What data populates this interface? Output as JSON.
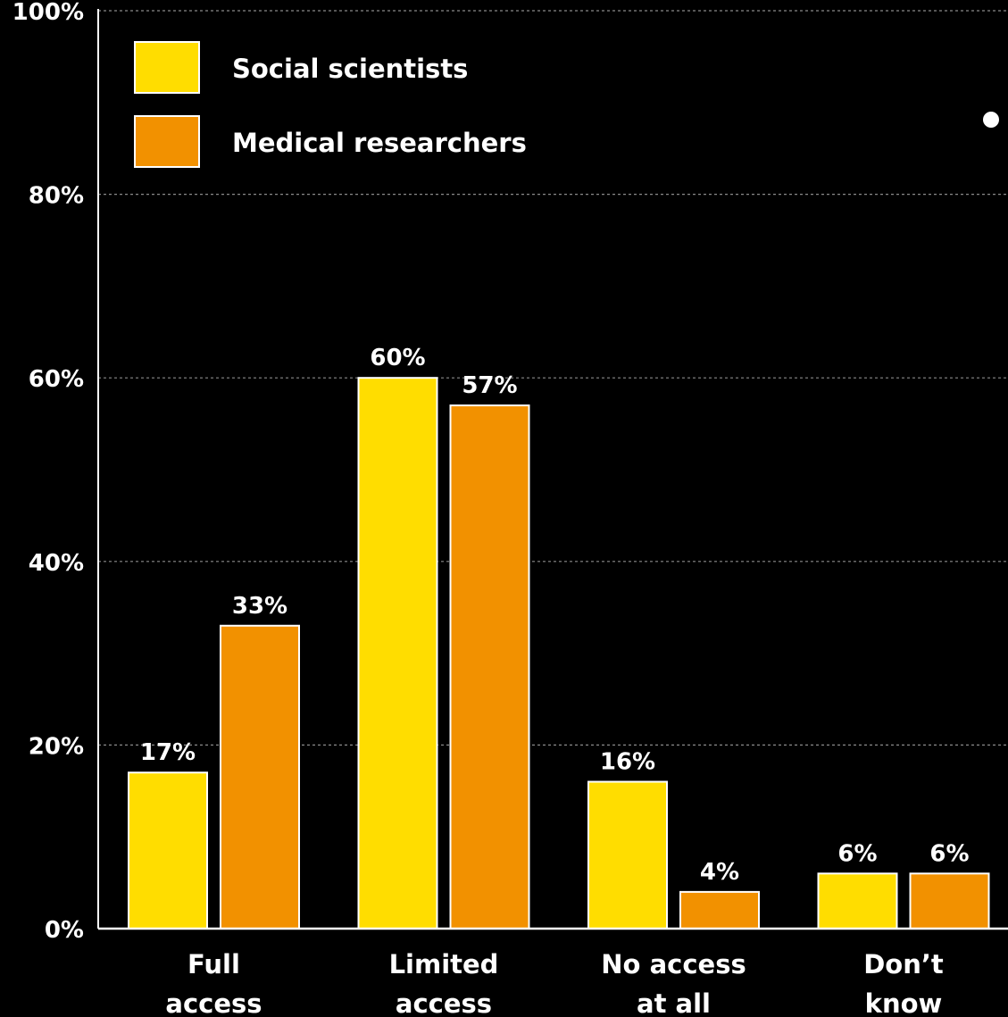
{
  "chart_data": {
    "type": "bar",
    "categories": [
      [
        "Full",
        "access"
      ],
      [
        "Limited",
        "access"
      ],
      [
        "No access",
        "at all"
      ],
      [
        "Don’t",
        "know"
      ]
    ],
    "series": [
      {
        "name": "Social scientists",
        "color": "#FFDD00",
        "values": [
          17,
          60,
          16,
          6
        ]
      },
      {
        "name": "Medical researchers",
        "color": "#F29100",
        "values": [
          33,
          57,
          4,
          6
        ]
      }
    ],
    "ylim": [
      0,
      100
    ],
    "yticks": [
      0,
      20,
      40,
      60,
      80,
      100
    ],
    "value_suffix": "%",
    "grid": true,
    "legend": "top-left"
  }
}
